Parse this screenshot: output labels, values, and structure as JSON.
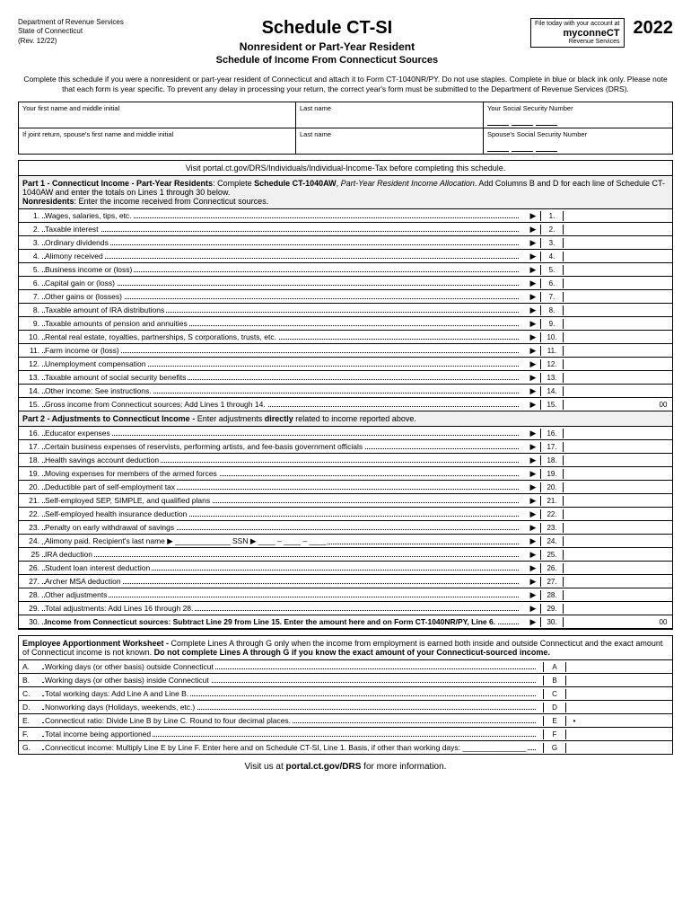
{
  "header": {
    "dept": "Department of Revenue Services",
    "state": "State of Connecticut",
    "rev": "(Rev. 12/22)",
    "title": "Schedule CT-SI",
    "subtitle1": "Nonresident or Part-Year Resident",
    "subtitle2": "Schedule of Income From Connecticut Sources",
    "logo_text": "File today with your account at",
    "logo_brand": "myconneCT",
    "logo_sub": "Revenue Services",
    "year": "2022"
  },
  "instructions": "Complete this schedule if you were a nonresident or part-year resident of Connecticut and attach it to Form CT-1040NR/PY. Do not use staples. Complete in blue or black ink only. Please note that each form is year specific. To prevent any delay in processing your return, the correct year's form must be submitted to the Department of Revenue Services (DRS).",
  "name_labels": {
    "first": "Your first name and middle initial",
    "last": "Last name",
    "ssn": "Your Social Security Number",
    "spouse_first": "If joint return, spouse's first name and middle initial",
    "spouse_last": "Last name",
    "spouse_ssn": "Spouse's Social Security Number"
  },
  "portal_text": "Visit portal.ct.gov/DRS/Individuals/Individual-Income-Tax before completing this schedule.",
  "part1_header": "Part 1 - Connecticut Income - Part-Year Residents: Complete Schedule CT-1040AW, Part-Year Resident Income Allocation. Add Columns B and D for each line of Schedule CT-1040AW and enter the totals on Lines 1 through 30 below. Nonresidents: Enter the income received from Connecticut sources.",
  "part1_lines": [
    {
      "n": "1.",
      "d": "Wages, salaries, tips, etc.",
      "b": "1."
    },
    {
      "n": "2.",
      "d": "Taxable interest",
      "b": "2."
    },
    {
      "n": "3.",
      "d": "Ordinary dividends",
      "b": "3."
    },
    {
      "n": "4.",
      "d": "Alimony received",
      "b": "4."
    },
    {
      "n": "5.",
      "d": "Business income or (loss)",
      "b": "5."
    },
    {
      "n": "6.",
      "d": "Capital gain or (loss)",
      "b": "6."
    },
    {
      "n": "7.",
      "d": "Other gains or (losses)",
      "b": "7."
    },
    {
      "n": "8.",
      "d": "Taxable amount of IRA distributions",
      "b": "8."
    },
    {
      "n": "9.",
      "d": "Taxable amounts of pension and annuities",
      "b": "9."
    },
    {
      "n": "10.",
      "d": "Rental real estate, royalties, partnerships, S corporations, trusts, etc.",
      "b": "10."
    },
    {
      "n": "11.",
      "d": "Farm income or (loss)",
      "b": "11."
    },
    {
      "n": "12.",
      "d": "Unemployment compensation",
      "b": "12."
    },
    {
      "n": "13.",
      "d": "Taxable amount of social security benefits",
      "b": "13."
    },
    {
      "n": "14.",
      "d": "Other income: See instructions.",
      "b": "14."
    },
    {
      "n": "15.",
      "d": "Gross income from Connecticut sources: Add Lines 1 through 14.",
      "b": "15.",
      "suffix": "00"
    }
  ],
  "part2_header": "Part 2 - Adjustments to Connecticut Income - Enter adjustments directly related to income reported above.",
  "part2_lines": [
    {
      "n": "16.",
      "d": "Educator expenses",
      "b": "16."
    },
    {
      "n": "17.",
      "d": "Certain business expenses of reservists, performing artists, and fee-basis government officials",
      "b": "17."
    },
    {
      "n": "18.",
      "d": "Health savings account deduction",
      "b": "18."
    },
    {
      "n": "19.",
      "d": "Moving expenses for members of the armed forces",
      "b": "19."
    },
    {
      "n": "20.",
      "d": "Deductible part of self-employment tax",
      "b": "20."
    },
    {
      "n": "21.",
      "d": "Self-employed SEP, SIMPLE, and qualified plans",
      "b": "21."
    },
    {
      "n": "22.",
      "d": "Self-employed health insurance deduction",
      "b": "22."
    },
    {
      "n": "23.",
      "d": "Penalty on early withdrawal of savings",
      "b": "23."
    },
    {
      "n": "24.",
      "d": "Alimony paid. Recipient's last name ▶ _____________ SSN ▶ ____ – ____ – ____",
      "b": "24."
    },
    {
      "n": "25",
      "d": "IRA deduction",
      "b": "25."
    },
    {
      "n": "26.",
      "d": "Student loan interest deduction",
      "b": "26."
    },
    {
      "n": "27.",
      "d": "Archer MSA deduction",
      "b": "27."
    },
    {
      "n": "28.",
      "d": "Other adjustments",
      "b": "28."
    },
    {
      "n": "29.",
      "d": "Total adjustments: Add Lines 16 through 28.",
      "b": "29."
    },
    {
      "n": "30.",
      "d": "Income from Connecticut sources: Subtract Line 29 from Line 15. Enter the amount here and on Form CT-1040NR/PY, Line 6.",
      "b": "30.",
      "suffix": "00",
      "bold": true
    }
  ],
  "worksheet_header": "Employee Apportionment Worksheet - Complete Lines A through G only when the income from employment is earned both inside and outside Connecticut and the exact amount of Connecticut income is not known. Do not complete Lines A through G if you know the exact amount of your Connecticut-sourced income.",
  "worksheet_lines": [
    {
      "l": "A.",
      "d": "Working days (or other basis) outside Connecticut",
      "b": "A"
    },
    {
      "l": "B.",
      "d": "Working days (or other basis) inside Connecticut",
      "b": "B"
    },
    {
      "l": "C.",
      "d": "Total working days: Add Line A and Line B.",
      "b": "C"
    },
    {
      "l": "D.",
      "d": "Nonworking days (Holidays, weekends, etc.)",
      "b": "D"
    },
    {
      "l": "E.",
      "d": "Connecticut ratio: Divide Line B by Line C. Round to four decimal places.",
      "b": "E",
      "dot": "•"
    },
    {
      "l": "F.",
      "d": "Total income being apportioned",
      "b": "F"
    },
    {
      "l": "G.",
      "d": "Connecticut income: Multiply Line E by Line F. Enter here and on Schedule CT-SI, Line 1. Basis, if other than working days: _______________",
      "b": "G"
    }
  ],
  "footer": "Visit us at portal.ct.gov/DRS for more information."
}
